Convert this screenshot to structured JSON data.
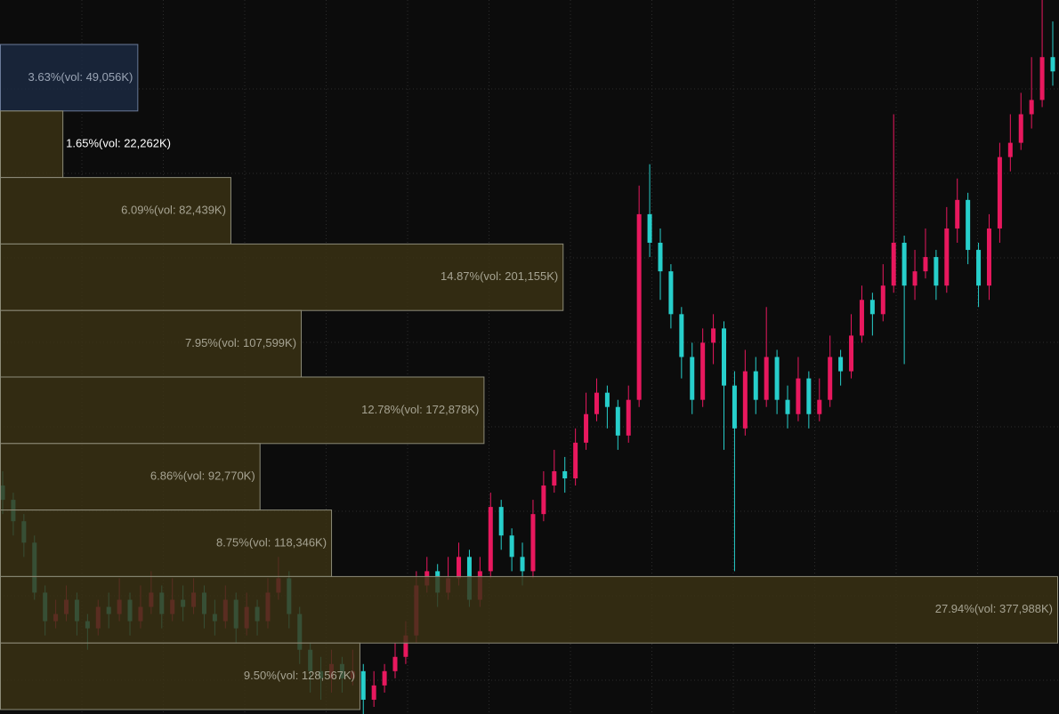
{
  "chart_data": [
    {
      "type": "candlestick",
      "ylim": [
        0,
        100
      ],
      "up_color": "#e8185e",
      "down_color": "#27cfcb",
      "open": [
        32,
        30,
        27,
        24,
        17,
        13,
        14,
        16,
        13,
        12,
        15,
        14,
        16,
        13,
        15,
        17,
        14,
        16,
        15,
        17,
        14,
        13,
        16,
        12,
        15,
        13,
        17,
        19,
        14,
        9,
        6,
        5,
        7,
        5,
        6,
        2,
        4,
        6,
        8,
        11,
        18,
        20,
        17,
        19,
        22,
        16,
        20,
        29,
        25,
        22,
        20,
        28,
        32,
        34,
        33,
        38,
        42,
        45,
        43,
        39,
        44,
        70,
        66,
        62,
        56,
        50,
        44,
        52,
        54,
        46,
        40,
        48,
        44,
        50,
        44,
        42,
        47,
        42,
        44,
        50,
        48,
        53,
        58,
        56,
        60,
        66,
        60,
        62,
        64,
        60,
        68,
        72,
        65,
        60,
        68,
        78,
        80,
        84,
        86,
        92
      ],
      "high": [
        34,
        31,
        28,
        25,
        18,
        16,
        18,
        17,
        14,
        16,
        17,
        19,
        17,
        18,
        20,
        18,
        19,
        18,
        19,
        18,
        16,
        18,
        17,
        17,
        16,
        19,
        22,
        20,
        15,
        10,
        8,
        9,
        8,
        9,
        7,
        6,
        7,
        10,
        13,
        20,
        22,
        21,
        22,
        24,
        23,
        22,
        31,
        30,
        26,
        24,
        30,
        34,
        37,
        36,
        40,
        45,
        47,
        46,
        44,
        46,
        74,
        77,
        68,
        63,
        57,
        52,
        54,
        56,
        55,
        48,
        51,
        50,
        57,
        51,
        46,
        50,
        48,
        47,
        53,
        51,
        56,
        60,
        59,
        63,
        84,
        67,
        65,
        68,
        65,
        71,
        75,
        73,
        66,
        70,
        80,
        84,
        87,
        92,
        100,
        97
      ],
      "low": [
        28,
        25,
        22,
        16,
        11,
        12,
        13,
        11,
        9,
        11,
        12,
        13,
        11,
        12,
        14,
        12,
        13,
        13,
        14,
        12,
        11,
        12,
        10,
        11,
        11,
        12,
        16,
        12,
        7,
        3,
        2,
        3,
        3,
        4,
        0,
        1,
        3,
        5,
        7,
        10,
        17,
        15,
        16,
        18,
        15,
        15,
        19,
        23,
        20,
        18,
        19,
        27,
        31,
        31,
        32,
        37,
        41,
        40,
        37,
        38,
        43,
        64,
        58,
        54,
        47,
        42,
        43,
        49,
        37,
        20,
        39,
        42,
        43,
        42,
        40,
        41,
        40,
        41,
        43,
        46,
        47,
        52,
        53,
        55,
        59,
        49,
        58,
        61,
        58,
        59,
        66,
        63,
        57,
        58,
        66,
        76,
        79,
        82,
        85,
        88
      ],
      "close": [
        30,
        27,
        24,
        17,
        13,
        14,
        16,
        13,
        12,
        15,
        14,
        16,
        13,
        15,
        17,
        14,
        16,
        15,
        17,
        14,
        13,
        16,
        12,
        15,
        13,
        17,
        19,
        14,
        9,
        6,
        5,
        7,
        5,
        6,
        2,
        4,
        6,
        8,
        11,
        18,
        20,
        17,
        19,
        22,
        16,
        20,
        29,
        25,
        22,
        20,
        28,
        32,
        34,
        33,
        38,
        42,
        45,
        43,
        39,
        44,
        70,
        66,
        62,
        56,
        50,
        44,
        52,
        54,
        46,
        40,
        48,
        44,
        50,
        44,
        42,
        47,
        42,
        44,
        50,
        48,
        53,
        58,
        56,
        60,
        66,
        60,
        62,
        64,
        60,
        68,
        72,
        65,
        60,
        68,
        78,
        80,
        84,
        86,
        92,
        90
      ]
    },
    {
      "type": "volume_profile",
      "values": [
        3.63,
        1.65,
        6.09,
        14.87,
        7.95,
        12.78,
        6.86,
        8.75,
        27.94,
        9.5
      ],
      "value_labels": [
        "3.63%(vol: 49,056K)",
        "1.65%(vol: 22,262K)",
        "6.09%(vol: 82,439K)",
        "14.87%(vol: 201,155K)",
        "7.95%(vol: 107,599K)",
        "12.78%(vol: 172,878K)",
        "6.86%(vol: 92,770K)",
        "8.75%(vol: 118,346K)",
        "27.94%(vol: 377,988K)",
        "9.50%(vol: 128,567K)"
      ],
      "colors": [
        "#1b2a42",
        "#3a3214",
        "#3a3214",
        "#3a3214",
        "#3a3214",
        "#3a3214",
        "#3a3214",
        "#3a3214",
        "#3a3214",
        "#3a3214"
      ],
      "label_colors": [
        "#9aa4b4",
        "#ffffff",
        "#a6a392",
        "#a6a392",
        "#a6a392",
        "#a6a392",
        "#a6a392",
        "#a6a392",
        "#a6a392",
        "#a6a392"
      ]
    }
  ]
}
